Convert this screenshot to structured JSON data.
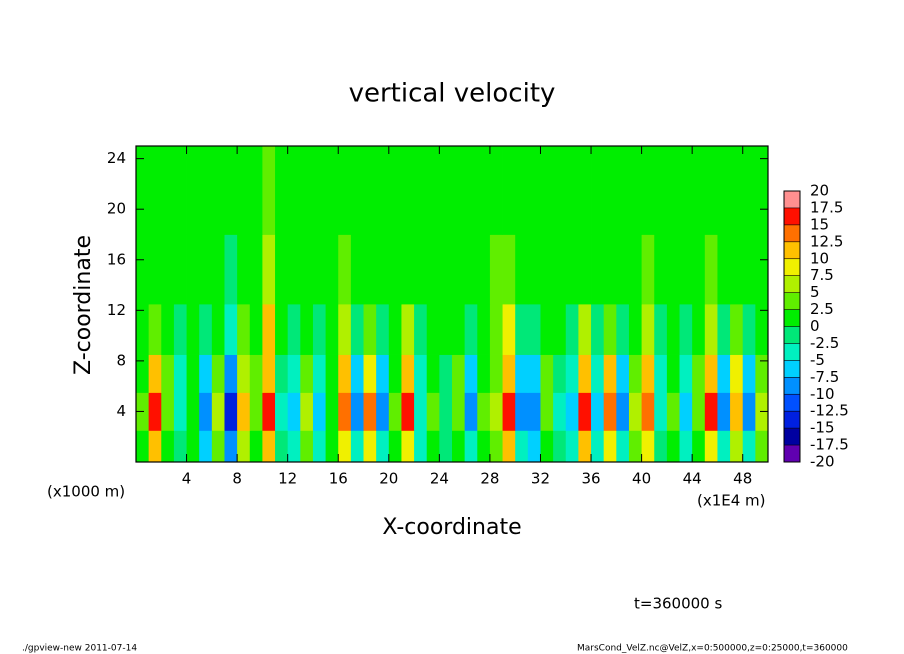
{
  "chart_data": {
    "type": "heatmap",
    "title": "vertical velocity",
    "x_label": "X-coordinate",
    "y_label": "Z-coordinate",
    "x_unit_left": "(x1000 m)",
    "x_unit_right": "(x1E4 m)",
    "annotation": "t=360000 s",
    "footer_left": "./gpview-new   2011-07-14",
    "footer_right": "MarsCond_VelZ.nc@VelZ,x=0:500000,z=0:25000,t=360000",
    "xlim": [
      0,
      50
    ],
    "ylim": [
      0,
      25
    ],
    "xticks": [
      4,
      8,
      12,
      16,
      20,
      24,
      28,
      32,
      36,
      40,
      44,
      48
    ],
    "yticks": [
      4,
      8,
      12,
      16,
      20,
      24
    ],
    "x": [
      0.5,
      1.5,
      2.5,
      3.5,
      4.5,
      5.5,
      6.5,
      7.5,
      8.5,
      9.5,
      10.5,
      11.5,
      12.5,
      13.5,
      14.5,
      15.5,
      16.5,
      17.5,
      18.5,
      19.5,
      20.5,
      21.5,
      22.5,
      23.5,
      24.5,
      25.5,
      26.5,
      27.5,
      28.5,
      29.5,
      30.5,
      31.5,
      32.5,
      33.5,
      34.5,
      35.5,
      36.5,
      37.5,
      38.5,
      39.5,
      40.5,
      41.5,
      42.5,
      43.5,
      44.5,
      45.5,
      46.5,
      47.5,
      48.5,
      49.5
    ],
    "y": [
      1,
      4,
      7,
      10,
      15,
      21
    ],
    "z": [
      [
        2,
        10,
        2,
        -2,
        1,
        -6,
        4,
        -9,
        6,
        2,
        10,
        -2,
        -4,
        3,
        -4,
        1,
        8,
        -5,
        8,
        -5,
        2,
        9,
        -3,
        2,
        -1,
        2,
        -5,
        2,
        3,
        10,
        -5,
        -6,
        2,
        -2,
        -4,
        10,
        -4,
        8,
        -5,
        4,
        8,
        -2,
        2,
        -4,
        2,
        9,
        -5,
        7,
        -5,
        3
      ],
      [
        3,
        16,
        4,
        -4,
        2,
        -10,
        6,
        -15,
        10,
        4,
        16,
        -3,
        -7,
        5,
        -6,
        2,
        14,
        -8,
        13,
        -9,
        3,
        15,
        -5,
        3,
        -2,
        4,
        -8,
        3,
        5,
        16,
        -9,
        -10,
        4,
        -3,
        -7,
        16,
        -6,
        14,
        -8,
        6,
        14,
        -4,
        3,
        -7,
        4,
        15,
        -9,
        12,
        -9,
        5
      ],
      [
        2,
        11,
        3,
        -3,
        1,
        -7,
        4,
        -10,
        7,
        3,
        11,
        -2,
        -5,
        3,
        -4,
        1,
        10,
        -6,
        9,
        -6,
        2,
        10,
        -3,
        2,
        -1,
        3,
        -6,
        2,
        3,
        11,
        -6,
        -7,
        3,
        -2,
        -5,
        11,
        -4,
        10,
        -6,
        4,
        10,
        -3,
        2,
        -5,
        3,
        10,
        -6,
        8,
        -6,
        3
      ],
      [
        1,
        4,
        1,
        -1,
        1,
        -2,
        2,
        -3,
        3,
        2,
        12,
        0,
        -2,
        2,
        -1,
        1,
        5,
        -2,
        4,
        -2,
        1,
        5,
        -1,
        1,
        0,
        2,
        -2,
        1,
        3,
        9,
        -2,
        -2,
        2,
        0,
        -2,
        5,
        -1,
        4,
        -2,
        2,
        5,
        -1,
        1,
        -2,
        2,
        6,
        -2,
        4,
        -2,
        2
      ],
      [
        1,
        2,
        1,
        0,
        1,
        0,
        1,
        -1,
        2,
        2,
        6,
        1,
        0,
        1,
        0,
        1,
        3,
        0,
        2,
        0,
        1,
        2,
        0,
        1,
        1,
        1,
        0,
        1,
        3,
        4,
        0,
        0,
        1,
        1,
        0,
        2,
        0,
        2,
        0,
        1,
        3,
        1,
        1,
        0,
        1,
        3,
        0,
        2,
        0,
        1
      ],
      [
        1,
        1,
        1,
        1,
        1,
        1,
        1,
        1,
        1,
        2,
        3,
        1,
        1,
        1,
        1,
        1,
        2,
        1,
        1,
        1,
        1,
        1,
        1,
        1,
        1,
        1,
        1,
        1,
        2,
        2,
        1,
        1,
        1,
        1,
        1,
        1,
        1,
        1,
        1,
        1,
        2,
        1,
        1,
        1,
        1,
        2,
        1,
        1,
        1,
        1
      ]
    ],
    "levels": [
      -20,
      -17.5,
      -15,
      -12.5,
      -10,
      -7.5,
      -5,
      -2.5,
      0,
      2.5,
      5,
      7.5,
      10,
      12.5,
      15,
      17.5,
      20
    ],
    "colors": [
      "#6000b0",
      "#0000a0",
      "#0020e0",
      "#0050ff",
      "#0090ff",
      "#00d0ff",
      "#00f0c0",
      "#00e878",
      "#00ee00",
      "#60ee00",
      "#b0f000",
      "#f0f000",
      "#ffc000",
      "#ff7000",
      "#ff1000",
      "#ff9090"
    ]
  }
}
